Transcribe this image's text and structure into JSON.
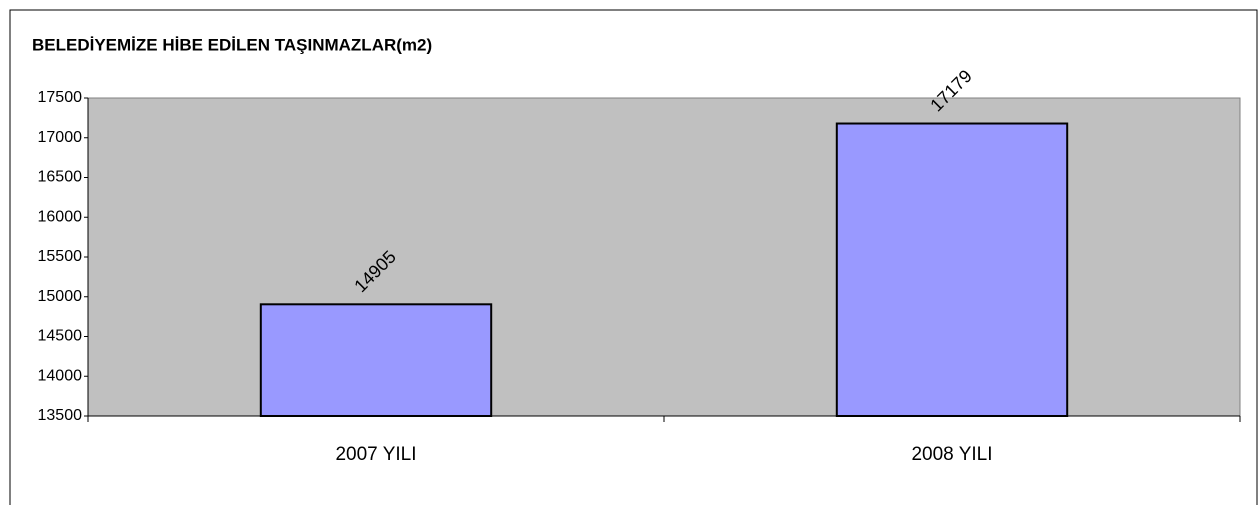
{
  "chart_data": {
    "type": "bar",
    "title": "BELEDİYEMİZE HİBE EDİLEN TAŞINMAZLAR(m2)",
    "categories": [
      "2007 YILI",
      "2008 YILI"
    ],
    "values": [
      14905,
      17179
    ],
    "color": "#9999ff",
    "ylim": [
      13500,
      17500
    ],
    "yticks": [
      13500,
      14000,
      14500,
      15000,
      15500,
      16000,
      16500,
      17000,
      17500
    ],
    "grid": false
  }
}
